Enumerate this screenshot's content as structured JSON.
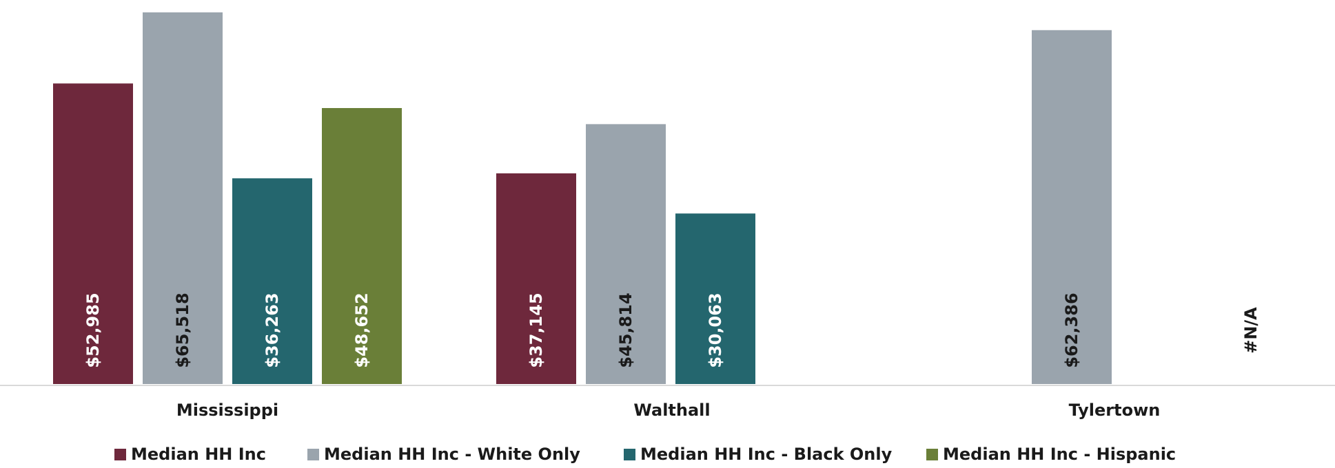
{
  "chart_data": {
    "type": "bar",
    "title": "",
    "xlabel": "",
    "ylabel": "",
    "ylim": [
      0,
      66000
    ],
    "grid": false,
    "legend_position": "bottom",
    "categories": [
      "Mississippi",
      "Walthall",
      "Tylertown"
    ],
    "series": [
      {
        "name": "Median HH Inc",
        "color": "#6e283c",
        "label_color": "#ffffff",
        "values": [
          52985,
          37145,
          null
        ],
        "labels": [
          "$52,985",
          "$37,145",
          ""
        ]
      },
      {
        "name": "Median HH Inc - White Only",
        "color": "#9aa4ad",
        "label_color": "#1a1a1a",
        "values": [
          65518,
          45814,
          62386
        ],
        "labels": [
          "$65,518",
          "$45,814",
          "$62,386"
        ]
      },
      {
        "name": "Median HH Inc - Black Only",
        "color": "#24666e",
        "label_color": "#ffffff",
        "values": [
          36263,
          30063,
          null
        ],
        "labels": [
          "$36,263",
          "$30,063",
          ""
        ]
      },
      {
        "name": "Median HH Inc - Hispanic",
        "color": "#6a7f38",
        "label_color": "#ffffff",
        "values": [
          48652,
          null,
          null
        ],
        "labels": [
          "$48,652",
          "",
          "#N/A"
        ]
      }
    ]
  }
}
